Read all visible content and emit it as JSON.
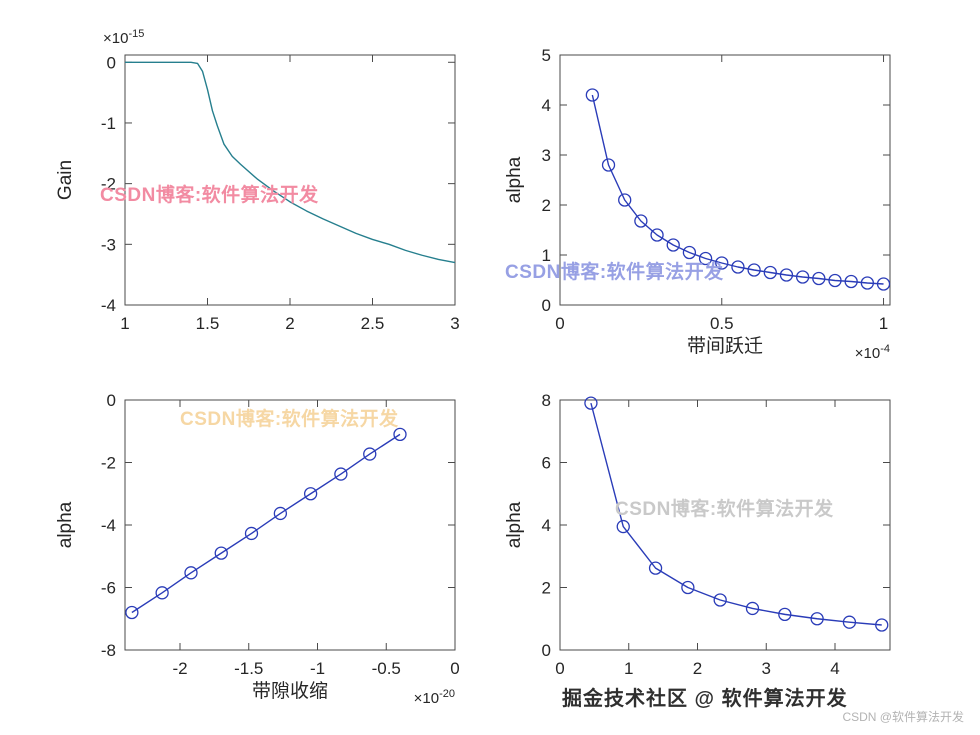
{
  "figure": {
    "background": "#ffffff",
    "axis_color": "#4a4a4a",
    "tick_label_color": "#262626"
  },
  "watermarks": [
    {
      "id": "top-left",
      "text": "CSDN博客:软件算法开发",
      "color": "#f28ba2"
    },
    {
      "id": "top-right",
      "text": "CSDN博客:软件算法开发",
      "color": "#97a0e4"
    },
    {
      "id": "bottom-left",
      "text": "CSDN博客:软件算法开发",
      "color": "#f6d7a4"
    },
    {
      "id": "bottom-right",
      "text": "CSDN博客:软件算法开发",
      "color": "#c9c9c9"
    }
  ],
  "footer": {
    "juejin_text": "掘金技术社区 @ 软件算法开发",
    "csdn_text": "CSDN @软件算法开发"
  },
  "chart_data": [
    {
      "id": "gain-vs-x",
      "type": "line",
      "title": "",
      "xlabel": "",
      "ylabel": "Gain",
      "xlim": [
        1,
        3
      ],
      "ylim": [
        -4,
        0.12
      ],
      "xticks": [
        1,
        1.5,
        2,
        2.5,
        3
      ],
      "xtick_labels": [
        "1",
        "1.5",
        "2",
        "2.5",
        "3"
      ],
      "yticks": [
        -4,
        -3,
        -2,
        -1,
        0
      ],
      "ytick_labels": [
        "-4",
        "-3",
        "-2",
        "-1",
        "0"
      ],
      "y_scale": {
        "prefix": "×10",
        "exp": "-15"
      },
      "line_color": "#267f8e",
      "marker": "none",
      "x": [
        1.0,
        1.05,
        1.1,
        1.15,
        1.2,
        1.25,
        1.3,
        1.35,
        1.4,
        1.44,
        1.47,
        1.5,
        1.53,
        1.56,
        1.6,
        1.65,
        1.7,
        1.8,
        1.9,
        2.0,
        2.1,
        2.2,
        2.3,
        2.4,
        2.5,
        2.6,
        2.7,
        2.8,
        2.9,
        3.0
      ],
      "y": [
        0,
        0,
        0,
        0,
        0,
        0,
        0,
        0,
        0,
        -0.02,
        -0.15,
        -0.45,
        -0.8,
        -1.05,
        -1.35,
        -1.55,
        -1.68,
        -1.92,
        -2.12,
        -2.3,
        -2.45,
        -2.58,
        -2.7,
        -2.82,
        -2.92,
        -3.0,
        -3.1,
        -3.18,
        -3.25,
        -3.3
      ]
    },
    {
      "id": "alpha-vs-interband",
      "type": "line",
      "title": "",
      "xlabel": "带间跃迁",
      "ylabel": "alpha",
      "xlim": [
        0,
        1.02
      ],
      "ylim": [
        0,
        5
      ],
      "xticks": [
        0,
        0.5,
        1
      ],
      "xtick_labels": [
        "0",
        "0.5",
        "1"
      ],
      "yticks": [
        0,
        1,
        2,
        3,
        4,
        5
      ],
      "ytick_labels": [
        "0",
        "1",
        "2",
        "3",
        "4",
        "5"
      ],
      "x_scale": {
        "prefix": "×10",
        "exp": "-4"
      },
      "line_color": "#2a3cb8",
      "marker": "circle",
      "x": [
        0.1,
        0.15,
        0.2,
        0.25,
        0.3,
        0.35,
        0.4,
        0.45,
        0.5,
        0.55,
        0.6,
        0.65,
        0.7,
        0.75,
        0.8,
        0.85,
        0.9,
        0.95,
        1.0
      ],
      "y": [
        4.2,
        2.8,
        2.1,
        1.68,
        1.4,
        1.2,
        1.05,
        0.93,
        0.84,
        0.76,
        0.7,
        0.65,
        0.6,
        0.56,
        0.53,
        0.49,
        0.47,
        0.44,
        0.42
      ]
    },
    {
      "id": "alpha-vs-bandgap",
      "type": "line",
      "title": "",
      "xlabel": "带隙收缩",
      "ylabel": "alpha",
      "xlim": [
        -2.4,
        0
      ],
      "ylim": [
        -8,
        0
      ],
      "xticks": [
        -2,
        -1.5,
        -1,
        -0.5,
        0
      ],
      "xtick_labels": [
        "-2",
        "-1.5",
        "-1",
        "-0.5",
        "0"
      ],
      "yticks": [
        -8,
        -6,
        -4,
        -2,
        0
      ],
      "ytick_labels": [
        "-8",
        "-6",
        "-4",
        "-2",
        "0"
      ],
      "x_scale": {
        "prefix": "×10",
        "exp": "-20"
      },
      "line_color": "#2a3cb8",
      "marker": "circle",
      "x": [
        -2.35,
        -2.13,
        -1.92,
        -1.7,
        -1.48,
        -1.27,
        -1.05,
        -0.83,
        -0.62,
        -0.4
      ],
      "y": [
        -6.8,
        -6.17,
        -5.53,
        -4.9,
        -4.27,
        -3.63,
        -3.0,
        -2.37,
        -1.73,
        -1.1
      ]
    },
    {
      "id": "alpha-vs-x",
      "type": "line",
      "title": "",
      "xlabel": "",
      "ylabel": "alpha",
      "xlim": [
        0,
        4.8
      ],
      "ylim": [
        0,
        8
      ],
      "xticks": [
        0,
        1,
        2,
        3,
        4
      ],
      "xtick_labels": [
        "0",
        "1",
        "2",
        "3",
        "4"
      ],
      "yticks": [
        0,
        2,
        4,
        6,
        8
      ],
      "ytick_labels": [
        "0",
        "2",
        "4",
        "6",
        "8"
      ],
      "line_color": "#2a3cb8",
      "marker": "circle",
      "x": [
        0.45,
        0.92,
        1.39,
        1.86,
        2.33,
        2.8,
        3.27,
        3.74,
        4.21,
        4.68
      ],
      "y": [
        7.9,
        3.95,
        2.62,
        2.0,
        1.6,
        1.33,
        1.14,
        1.0,
        0.89,
        0.8
      ]
    }
  ]
}
